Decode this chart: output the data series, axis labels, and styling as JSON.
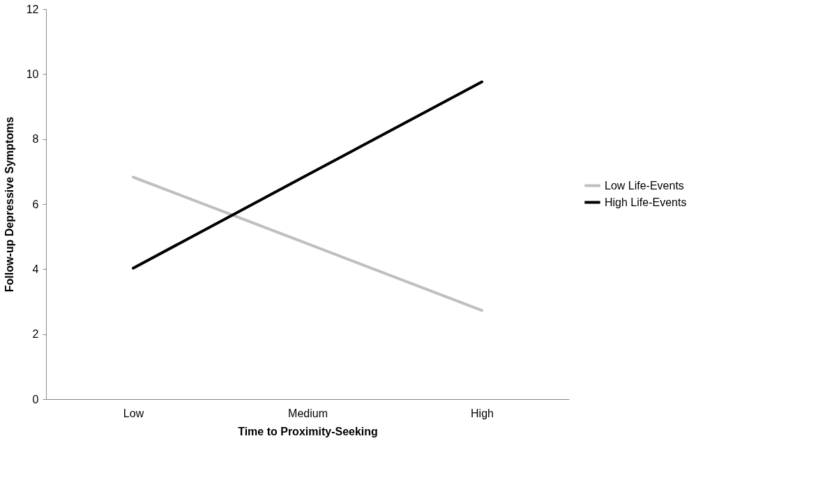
{
  "chart_data": {
    "type": "line",
    "xlabel": "Time to Proximity-Seeking",
    "ylabel": "Follow-up Depressive Symptoms",
    "categories": [
      "Low",
      "Medium",
      "High"
    ],
    "series": [
      {
        "name": "Low Life-Events",
        "color": "#bfbfbf",
        "values": [
          6.83,
          4.78,
          2.73
        ]
      },
      {
        "name": "High Life-Events",
        "color": "#000000",
        "values": [
          4.03,
          6.9,
          9.76
        ]
      }
    ],
    "ylim": [
      0,
      12
    ],
    "yticks": [
      0,
      2,
      4,
      6,
      8,
      10,
      12
    ],
    "grid": false,
    "legend": "right",
    "marker": "none",
    "line_style": "solid"
  }
}
